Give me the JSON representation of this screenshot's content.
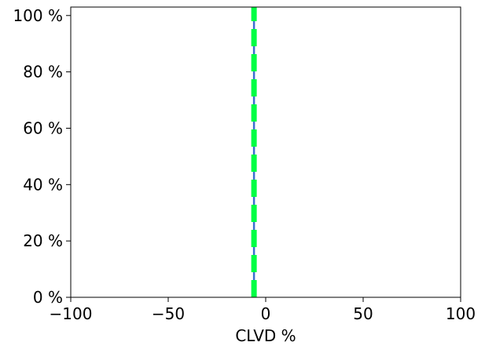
{
  "chart_data": {
    "type": "line",
    "title": "",
    "xlabel": "CLVD %",
    "ylabel": "",
    "xlim": [
      -100,
      100
    ],
    "ylim": [
      0,
      103
    ],
    "x_ticks": [
      -100,
      -50,
      0,
      50,
      100
    ],
    "x_tick_labels": [
      "−100",
      "−50",
      "0",
      "50",
      "100"
    ],
    "y_ticks": [
      0,
      20,
      40,
      60,
      80,
      100
    ],
    "y_tick_labels": [
      "0 %",
      "20 %",
      "40 %",
      "60 %",
      "80 %",
      "100 %"
    ],
    "grid": false,
    "legend": "none",
    "series": [
      {
        "x": [
          -6,
          -6
        ],
        "y": [
          0,
          103
        ],
        "color": "#3b6fd1",
        "style": "solid"
      },
      {
        "x": [
          -6,
          -6
        ],
        "y": [
          0,
          103
        ],
        "color": "#00ff44",
        "style": "dashed"
      }
    ]
  }
}
